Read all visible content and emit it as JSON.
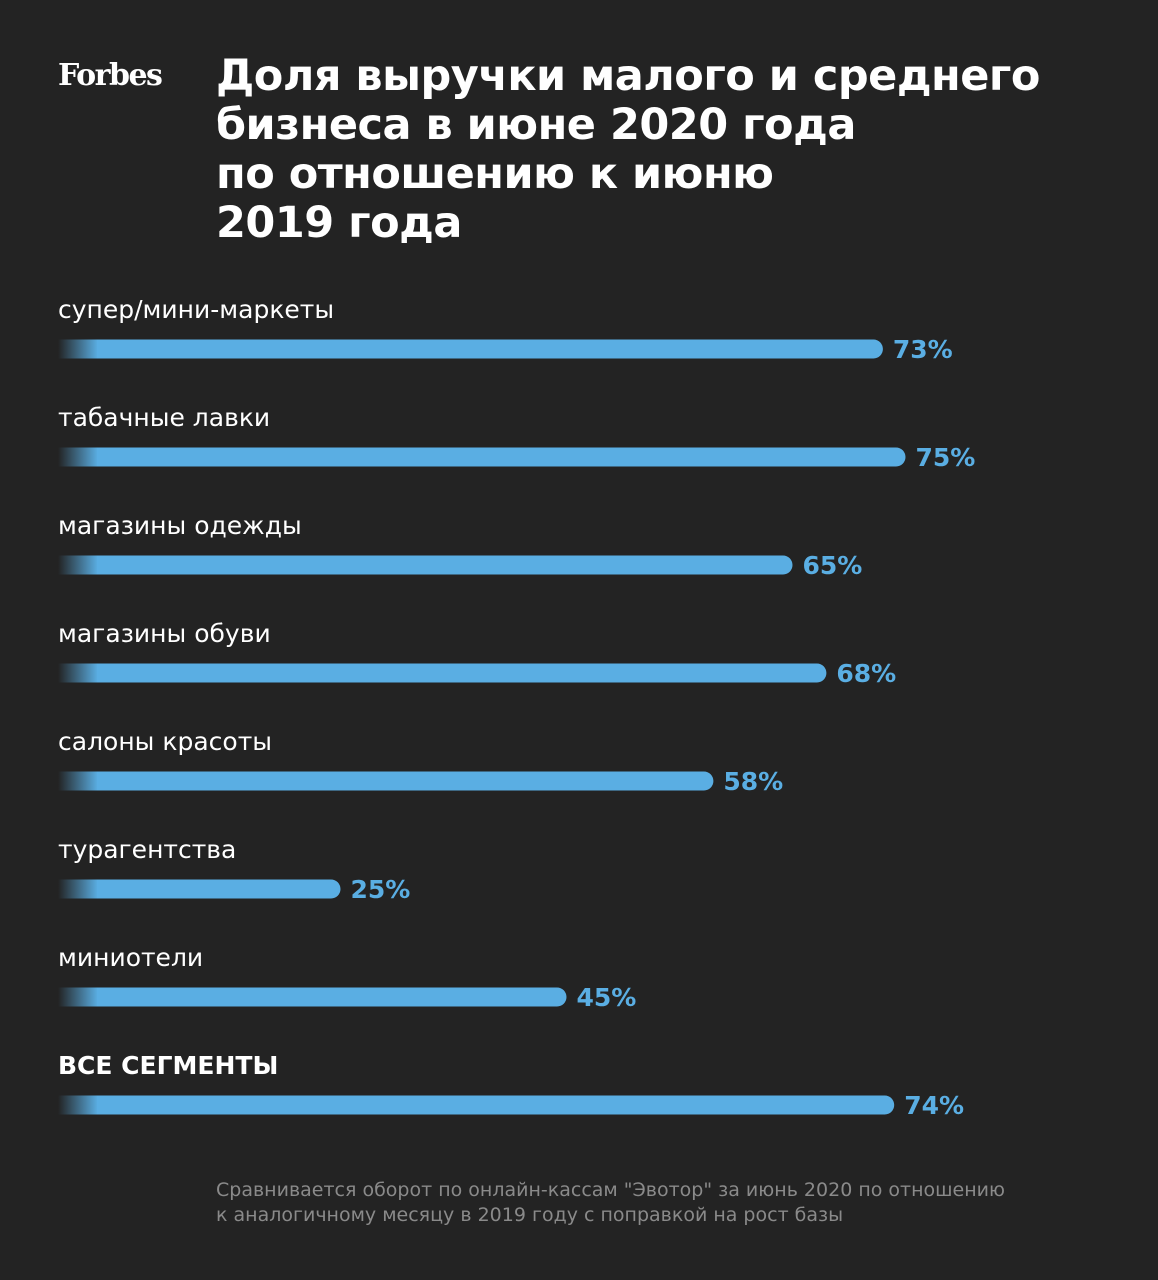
{
  "logo": "Forbes",
  "title_lines": [
    "Доля выручки малого и среднего",
    "бизнеса в июне 2020 года",
    "по отношению к июню",
    "2019 года"
  ],
  "chart_data": {
    "type": "bar",
    "orientation": "horizontal",
    "title": "Доля выручки малого и среднего бизнеса в июне 2020 года по отношению к июню 2019 года",
    "categories": [
      "супер/мини-маркеты",
      "табачные лавки",
      "магазины одежды",
      "магазины обуви",
      "салоны красоты",
      "турагентства",
      "миниотели",
      "ВСЕ СЕГМЕНТЫ"
    ],
    "values": [
      73,
      75,
      65,
      68,
      58,
      25,
      45,
      74
    ],
    "value_labels": [
      "73%",
      "75%",
      "65%",
      "68%",
      "58%",
      "25%",
      "45%",
      "74%"
    ],
    "unit": "%",
    "grid": false,
    "legend": "none",
    "bar_color": "#5aaee3"
  },
  "footnote_lines": [
    "Сравнивается оборот по онлайн-кассам \"Эвотор\" за июнь 2020 по отношению",
    "к аналогичному месяцу в 2019 году с поправкой на рост базы"
  ],
  "colors": {
    "background": "#232323",
    "bar": "#5aaee3",
    "text": "#ffffff",
    "note": "#8a8a8a"
  }
}
